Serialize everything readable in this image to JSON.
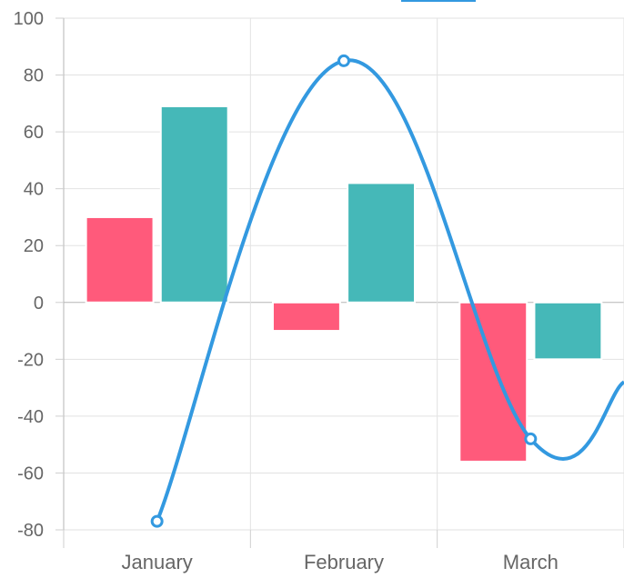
{
  "chart_data": {
    "type": "bar",
    "categories": [
      "January",
      "February",
      "March"
    ],
    "series": [
      {
        "type": "bar",
        "color": "#ff5a7b",
        "values": [
          30,
          -10,
          -56
        ]
      },
      {
        "type": "bar",
        "color": "#45b8b8",
        "values": [
          69,
          42,
          -20
        ]
      },
      {
        "type": "line",
        "color": "#3399e0",
        "values": [
          -77,
          85,
          -48
        ]
      }
    ],
    "ylim": [
      -80,
      100
    ],
    "yticks": [
      100,
      80,
      60,
      40,
      20,
      0,
      -20,
      -40,
      -60,
      -80
    ],
    "grid": true,
    "legend": "top"
  }
}
